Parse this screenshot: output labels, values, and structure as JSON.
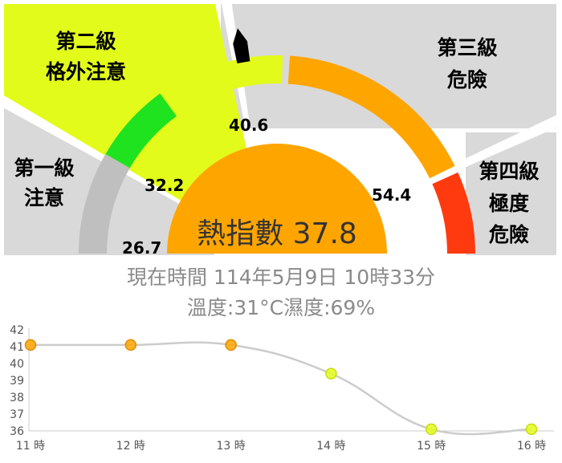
{
  "gauge": {
    "label": "熱指數",
    "value": 37.8,
    "scale_min": 20,
    "scale_max": 60,
    "thresholds": [
      "26.7",
      "32.2",
      "40.6",
      "54.4"
    ],
    "levels": [
      {
        "name": "第一級",
        "desc": "注意",
        "color": "#1ee31e"
      },
      {
        "name": "第二級",
        "desc": "格外注意",
        "color": "#e3fb1a"
      },
      {
        "name": "第三級",
        "desc": "危險",
        "color": "#ffa500"
      },
      {
        "name": "第四級",
        "desc": "極度危險",
        "color": "#ff3a0e"
      }
    ],
    "background_colors": {
      "quadrant": "#d9d9d9",
      "level2_wedge": "#e3fb1a",
      "center": "#ffa500",
      "needle": "#000000"
    }
  },
  "status": {
    "now_label": "現在時間",
    "now_value": "114年5月9日 10時33分",
    "temp_label": "溫度:",
    "temp_value": "31°C",
    "humidity_label": "濕度:",
    "humidity_value": "69%"
  },
  "chart_data": {
    "type": "line",
    "x": [
      "11 時",
      "12 時",
      "13 時",
      "14 時",
      "15 時",
      "16 時"
    ],
    "y": [
      41.1,
      41.1,
      41.1,
      39.4,
      36.1,
      36.1
    ],
    "point_colors": [
      "#ffa500",
      "#ffa500",
      "#ffa500",
      "#e3fb1a",
      "#e3fb1a",
      "#e3fb1a"
    ],
    "ylim": [
      36,
      42
    ],
    "yticks": [
      "36",
      "37",
      "38",
      "39",
      "40",
      "41",
      "42"
    ],
    "grid": false,
    "line_color": "#cccccc"
  }
}
